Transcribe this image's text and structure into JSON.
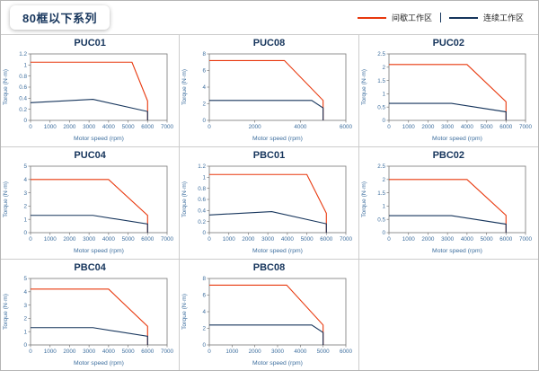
{
  "header": {
    "series_title": "80框以下系列",
    "legend": [
      {
        "label": "间歇工作区",
        "color": "#e8380d"
      },
      {
        "label": "连续工作区",
        "color": "#16355c"
      }
    ]
  },
  "styles": {
    "frame_color": "#777777",
    "tick_text_color": "#3d6e9e",
    "title_color": "#16355c",
    "grid_line_color": "#cccccc",
    "intermittent_color": "#e8380d",
    "continuous_color": "#16355c"
  },
  "chart_data": [
    {
      "type": "line",
      "title": "PUC01",
      "xlabel": "Motor speed (rpm)",
      "ylabel": "Torque (N·m)",
      "xlim": [
        0,
        7000
      ],
      "ylim": [
        0,
        1.2
      ],
      "xticks": [
        0,
        1000,
        2000,
        3000,
        4000,
        5000,
        6000,
        7000
      ],
      "yticks": [
        0,
        0.2,
        0.4,
        0.6,
        0.8,
        1,
        1.2
      ],
      "series": [
        {
          "name": "间歇工作区",
          "color": "#e8380d",
          "points": [
            [
              0,
              1.05
            ],
            [
              5200,
              1.05
            ],
            [
              6000,
              0.35
            ],
            [
              6000,
              0
            ]
          ]
        },
        {
          "name": "连续工作区",
          "color": "#16355c",
          "points": [
            [
              0,
              0.32
            ],
            [
              3200,
              0.38
            ],
            [
              6000,
              0.16
            ],
            [
              6000,
              0
            ]
          ]
        }
      ]
    },
    {
      "type": "line",
      "title": "PUC08",
      "xlabel": "Motor speed (rpm)",
      "ylabel": "Torque (N·m)",
      "xlim": [
        0,
        6000
      ],
      "ylim": [
        0,
        8
      ],
      "xticks": [
        0,
        2000,
        4000,
        6000
      ],
      "yticks": [
        0,
        2,
        4,
        6,
        8
      ],
      "series": [
        {
          "name": "间歇工作区",
          "color": "#e8380d",
          "points": [
            [
              0,
              7.2
            ],
            [
              3300,
              7.2
            ],
            [
              5000,
              2.4
            ],
            [
              5000,
              0
            ]
          ]
        },
        {
          "name": "连续工作区",
          "color": "#16355c",
          "points": [
            [
              0,
              2.4
            ],
            [
              4500,
              2.4
            ],
            [
              5000,
              1.5
            ],
            [
              5000,
              0
            ]
          ]
        }
      ]
    },
    {
      "type": "line",
      "title": "PUC02",
      "xlabel": "Motor speed (rpm)",
      "ylabel": "Torque (N·m)",
      "xlim": [
        0,
        7000
      ],
      "ylim": [
        0,
        2.5
      ],
      "xticks": [
        0,
        1000,
        2000,
        3000,
        4000,
        5000,
        6000,
        7000
      ],
      "yticks": [
        0,
        0.5,
        1,
        1.5,
        2,
        2.5
      ],
      "series": [
        {
          "name": "间歇工作区",
          "color": "#e8380d",
          "points": [
            [
              0,
              2.1
            ],
            [
              4000,
              2.1
            ],
            [
              6000,
              0.7
            ],
            [
              6000,
              0
            ]
          ]
        },
        {
          "name": "连续工作区",
          "color": "#16355c",
          "points": [
            [
              0,
              0.64
            ],
            [
              3200,
              0.64
            ],
            [
              6000,
              0.32
            ],
            [
              6000,
              0
            ]
          ]
        }
      ]
    },
    {
      "type": "line",
      "title": "PUC04",
      "xlabel": "Motor speed (rpm)",
      "ylabel": "Torque (N·m)",
      "xlim": [
        0,
        7000
      ],
      "ylim": [
        0,
        5
      ],
      "xticks": [
        0,
        1000,
        2000,
        3000,
        4000,
        5000,
        6000,
        7000
      ],
      "yticks": [
        0,
        1,
        2,
        3,
        4,
        5
      ],
      "series": [
        {
          "name": "间歇工作区",
          "color": "#e8380d",
          "points": [
            [
              0,
              4.0
            ],
            [
              4000,
              4.0
            ],
            [
              6000,
              1.3
            ],
            [
              6000,
              0
            ]
          ]
        },
        {
          "name": "连续工作区",
          "color": "#16355c",
          "points": [
            [
              0,
              1.3
            ],
            [
              3200,
              1.3
            ],
            [
              6000,
              0.65
            ],
            [
              6000,
              0
            ]
          ]
        }
      ]
    },
    {
      "type": "line",
      "title": "PBC01",
      "xlabel": "Motor speed (rpm)",
      "ylabel": "Torque (N·m)",
      "xlim": [
        0,
        7000
      ],
      "ylim": [
        0,
        1.2
      ],
      "xticks": [
        0,
        1000,
        2000,
        3000,
        4000,
        5000,
        6000,
        7000
      ],
      "yticks": [
        0,
        0.2,
        0.4,
        0.6,
        0.8,
        1,
        1.2
      ],
      "series": [
        {
          "name": "间歇工作区",
          "color": "#e8380d",
          "points": [
            [
              0,
              1.05
            ],
            [
              5000,
              1.05
            ],
            [
              6000,
              0.35
            ],
            [
              6000,
              0
            ]
          ]
        },
        {
          "name": "连续工作区",
          "color": "#16355c",
          "points": [
            [
              0,
              0.32
            ],
            [
              3200,
              0.38
            ],
            [
              6000,
              0.16
            ],
            [
              6000,
              0
            ]
          ]
        }
      ]
    },
    {
      "type": "line",
      "title": "PBC02",
      "xlabel": "Motor speed (rpm)",
      "ylabel": "Torque (N·m)",
      "xlim": [
        0,
        7000
      ],
      "ylim": [
        0,
        2.5
      ],
      "xticks": [
        0,
        1000,
        2000,
        3000,
        4000,
        5000,
        6000,
        7000
      ],
      "yticks": [
        0,
        0.5,
        1,
        1.5,
        2,
        2.5
      ],
      "series": [
        {
          "name": "间歇工作区",
          "color": "#e8380d",
          "points": [
            [
              0,
              2.0
            ],
            [
              4000,
              2.0
            ],
            [
              6000,
              0.65
            ],
            [
              6000,
              0
            ]
          ]
        },
        {
          "name": "连续工作区",
          "color": "#16355c",
          "points": [
            [
              0,
              0.64
            ],
            [
              3200,
              0.64
            ],
            [
              6000,
              0.32
            ],
            [
              6000,
              0
            ]
          ]
        }
      ]
    },
    {
      "type": "line",
      "title": "PBC04",
      "xlabel": "Motor speed (rpm)",
      "ylabel": "Torque (N·m)",
      "xlim": [
        0,
        7000
      ],
      "ylim": [
        0,
        5
      ],
      "xticks": [
        0,
        1000,
        2000,
        3000,
        4000,
        5000,
        6000,
        7000
      ],
      "yticks": [
        0,
        1,
        2,
        3,
        4,
        5
      ],
      "series": [
        {
          "name": "间歇工作区",
          "color": "#e8380d",
          "points": [
            [
              0,
              4.2
            ],
            [
              4000,
              4.2
            ],
            [
              6000,
              1.4
            ],
            [
              6000,
              0
            ]
          ]
        },
        {
          "name": "连续工作区",
          "color": "#16355c",
          "points": [
            [
              0,
              1.3
            ],
            [
              3200,
              1.3
            ],
            [
              6000,
              0.65
            ],
            [
              6000,
              0
            ]
          ]
        }
      ]
    },
    {
      "type": "line",
      "title": "PBC08",
      "xlabel": "Motor speed (rpm)",
      "ylabel": "Torque (N·m)",
      "xlim": [
        0,
        6000
      ],
      "ylim": [
        0,
        8
      ],
      "xticks": [
        0,
        1000,
        2000,
        3000,
        4000,
        5000,
        6000
      ],
      "yticks": [
        0,
        2,
        4,
        6,
        8
      ],
      "series": [
        {
          "name": "间歇工作区",
          "color": "#e8380d",
          "points": [
            [
              0,
              7.2
            ],
            [
              3400,
              7.2
            ],
            [
              5000,
              2.4
            ],
            [
              5000,
              0
            ]
          ]
        },
        {
          "name": "连续工作区",
          "color": "#16355c",
          "points": [
            [
              0,
              2.4
            ],
            [
              4500,
              2.4
            ],
            [
              5000,
              1.5
            ],
            [
              5000,
              0
            ]
          ]
        }
      ]
    }
  ]
}
